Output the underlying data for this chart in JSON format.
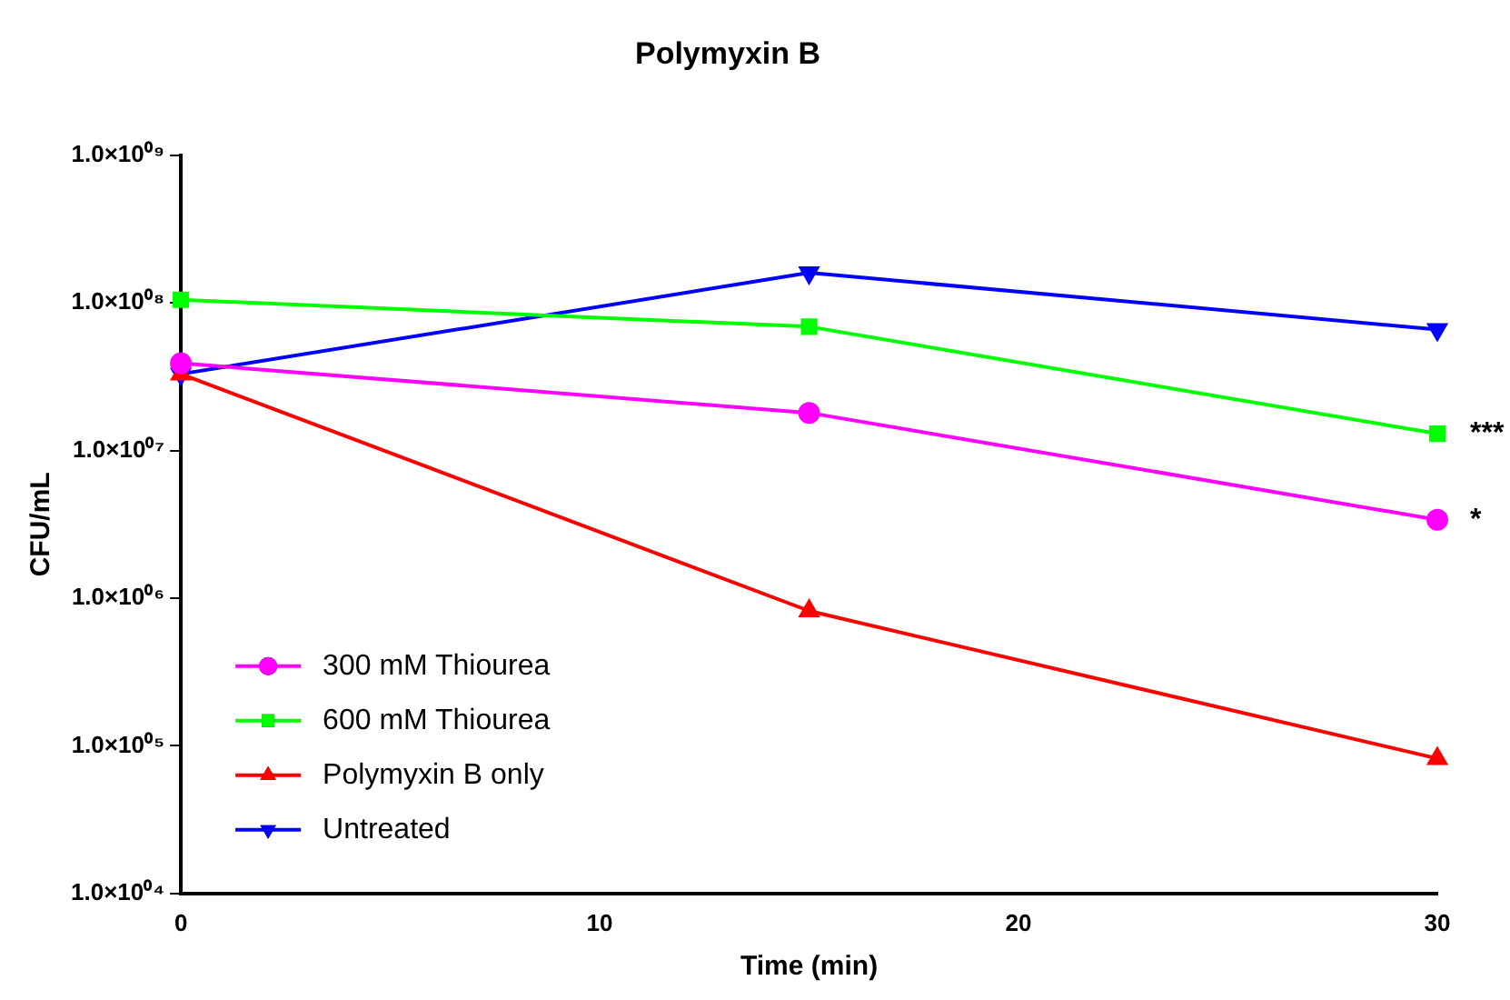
{
  "chart_data": {
    "type": "line",
    "title": "Polymyxin B",
    "xlabel": "Time (min)",
    "ylabel": "CFU/mL",
    "log": true,
    "grid": false,
    "legend": "bottom left",
    "x": [
      0,
      15,
      30
    ],
    "xlim": [
      0,
      30
    ],
    "xticks": [
      0,
      10,
      20,
      30
    ],
    "ylim": [
      10000,
      1000000000
    ],
    "yticks": [
      {
        "value": 10000,
        "label": "1.0×10⁰⁴"
      },
      {
        "value": 100000,
        "label": "1.0×10⁰⁵"
      },
      {
        "value": 1000000,
        "label": "1.0×10⁰⁶"
      },
      {
        "value": 10000000,
        "label": "1.0×10⁰⁷"
      },
      {
        "value": 100000000,
        "label": "1.0×10⁰⁸"
      },
      {
        "value": 1000000000,
        "label": "1.0×10⁰⁹"
      }
    ],
    "series": [
      {
        "name": "300 mM Thiourea",
        "color": "#ff00ff",
        "marker": "circle",
        "values": [
          39000000,
          18000000,
          3400000
        ]
      },
      {
        "name": "600 mM Thiourea",
        "color": "#00ff00",
        "marker": "square",
        "values": [
          105000000,
          69000000,
          13000000
        ]
      },
      {
        "name": "Polymyxin B only",
        "color": "#ff0000",
        "marker": "triangle",
        "values": [
          33000000,
          820000,
          82000
        ]
      },
      {
        "name": "Untreated",
        "color": "#0000ff",
        "marker": "triangle-down",
        "values": [
          33000000,
          160000000,
          66000000
        ]
      }
    ],
    "annotations": [
      {
        "text": "***",
        "x": 30,
        "y": 13000000
      },
      {
        "text": "*",
        "x": 30,
        "y": 3400000
      }
    ]
  }
}
